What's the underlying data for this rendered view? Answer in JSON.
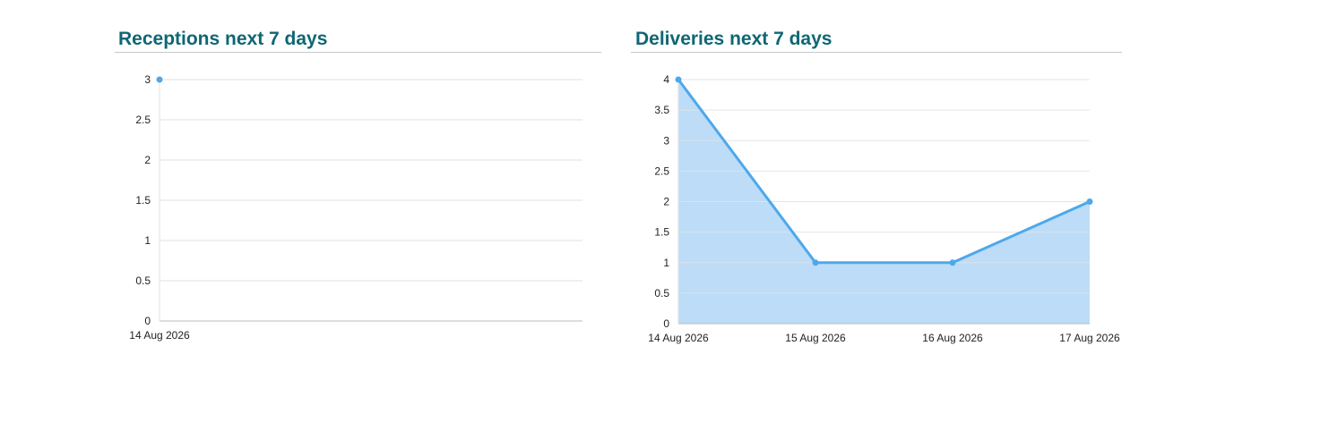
{
  "chart_data": [
    {
      "type": "line",
      "title": "Receptions next 7 days",
      "xlabel": "",
      "ylabel": "",
      "categories": [
        "14 Aug 2026"
      ],
      "values": [
        3
      ],
      "ylim": [
        0,
        3
      ],
      "yticks": [
        "0",
        "0.5",
        "1",
        "1.5",
        "2",
        "2.5",
        "3"
      ],
      "grid": true,
      "area_fill": false,
      "colors": {
        "line": "#4ea8ea",
        "fill": "#bcdcf8",
        "grid": "#e2e2e2",
        "axis": "#bdbdbd"
      }
    },
    {
      "type": "area",
      "title": "Deliveries next 7 days",
      "xlabel": "",
      "ylabel": "",
      "categories": [
        "14 Aug 2026",
        "15 Aug 2026",
        "16 Aug 2026",
        "17 Aug 2026"
      ],
      "values": [
        4,
        1,
        1,
        2
      ],
      "ylim": [
        0,
        4
      ],
      "yticks": [
        "0",
        "0.5",
        "1",
        "1.5",
        "2",
        "2.5",
        "3",
        "3.5",
        "4"
      ],
      "grid": true,
      "area_fill": true,
      "colors": {
        "line": "#4ea8ea",
        "fill": "#bcdcf8",
        "grid": "#e2e2e2",
        "axis": "#bdbdbd"
      }
    }
  ]
}
